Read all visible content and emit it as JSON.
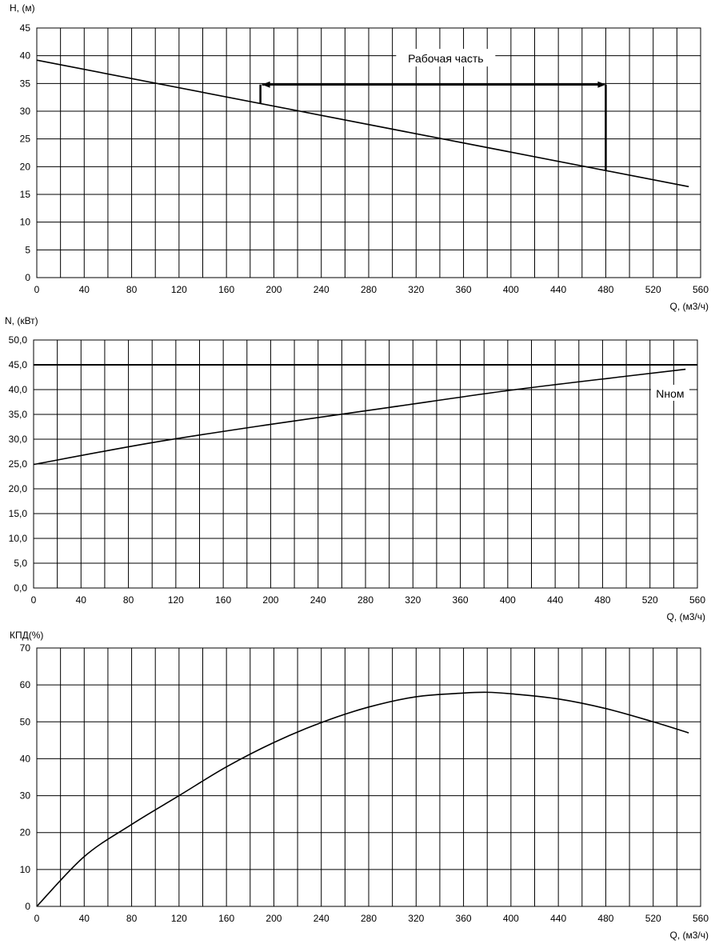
{
  "chart_data": [
    {
      "type": "line",
      "ylabel": "H, (м)",
      "xlabel": "Q, (м3/ч)",
      "xlim": [
        0,
        560
      ],
      "ylim": [
        0,
        45
      ],
      "x_step": 20,
      "y_step": 5,
      "x_ticks": [
        "0",
        "40",
        "80",
        "120",
        "160",
        "200",
        "240",
        "280",
        "320",
        "360",
        "400",
        "440",
        "480",
        "520",
        "560"
      ],
      "y_ticks": [
        "0",
        "5",
        "10",
        "15",
        "20",
        "25",
        "30",
        "35",
        "40",
        "45"
      ],
      "grid": true,
      "series": [
        {
          "x": [
            0,
            550
          ],
          "y": [
            39.2,
            16.4
          ]
        }
      ],
      "annotation": {
        "text": "Рабочая часть",
        "q_min": 190,
        "q_max": 480,
        "h_arrow": 34.8,
        "text_q": 345,
        "text_h": 39.5
      }
    },
    {
      "type": "line",
      "ylabel": "N, (кВт)",
      "xlabel": "Q, (м3/ч)",
      "xlim": [
        0,
        560
      ],
      "ylim": [
        0,
        50
      ],
      "x_step": 20,
      "y_step": 5,
      "x_ticks": [
        "0",
        "40",
        "80",
        "120",
        "160",
        "200",
        "240",
        "280",
        "320",
        "360",
        "400",
        "440",
        "480",
        "520",
        "560"
      ],
      "y_ticks": [
        "0,0",
        "5,0",
        "10,0",
        "15,0",
        "20,0",
        "25,0",
        "30,0",
        "35,0",
        "40,0",
        "45,0",
        "50,0"
      ],
      "grid": true,
      "series": [
        {
          "x": [
            0,
            100,
            200,
            300,
            400,
            500,
            550
          ],
          "y": [
            24.9,
            29.3,
            33.0,
            36.4,
            39.8,
            42.7,
            44.1
          ]
        },
        {
          "name": "Nном",
          "x": [
            0,
            560
          ],
          "y": [
            45.0,
            45.0
          ]
        }
      ],
      "annotation": {
        "text": "Nном",
        "q": 537,
        "n": 39.2
      }
    },
    {
      "type": "line",
      "ylabel": "КПД(%)",
      "xlabel": "Q, (м3/ч)",
      "xlim": [
        0,
        560
      ],
      "ylim": [
        0,
        70
      ],
      "x_step": 20,
      "y_step": 10,
      "x_ticks": [
        "0",
        "40",
        "80",
        "120",
        "160",
        "200",
        "240",
        "280",
        "320",
        "360",
        "400",
        "440",
        "480",
        "520",
        "560"
      ],
      "y_ticks": [
        "0",
        "10",
        "20",
        "30",
        "40",
        "50",
        "60",
        "70"
      ],
      "grid": true,
      "series": [
        {
          "x": [
            0,
            40,
            80,
            120,
            160,
            200,
            240,
            280,
            320,
            360,
            380,
            400,
            440,
            480,
            520,
            550
          ],
          "y": [
            0,
            13.5,
            22.2,
            30.0,
            37.8,
            44.4,
            49.8,
            54.0,
            56.8,
            57.8,
            58.0,
            57.6,
            56.2,
            53.6,
            50.0,
            47.0
          ]
        }
      ]
    }
  ]
}
